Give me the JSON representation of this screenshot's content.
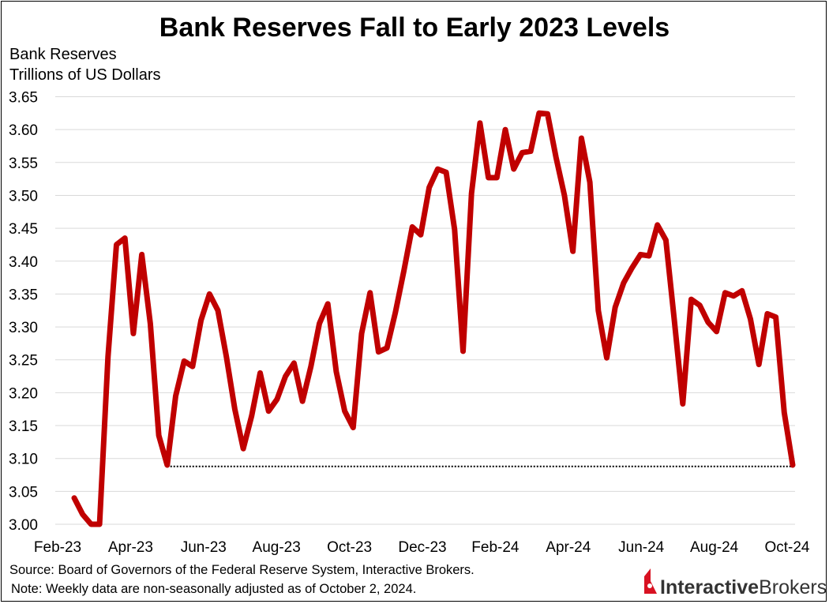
{
  "chart_data": {
    "type": "line",
    "title": "Bank Reserves Fall to Early 2023 Levels",
    "ylabel_lines": [
      "Bank Reserves",
      "Trillions of US Dollars"
    ],
    "ylim": [
      3.0,
      3.65
    ],
    "yticks": [
      "3.00",
      "3.05",
      "3.10",
      "3.15",
      "3.20",
      "3.25",
      "3.30",
      "3.35",
      "3.40",
      "3.45",
      "3.50",
      "3.55",
      "3.60",
      "3.65"
    ],
    "xticks": [
      "Feb-23",
      "Apr-23",
      "Jun-23",
      "Aug-23",
      "Oct-23",
      "Dec-23",
      "Feb-24",
      "Apr-24",
      "Jun-24",
      "Aug-24",
      "Oct-24"
    ],
    "grid": true,
    "series": [
      {
        "color": "#c00000",
        "values": [
          3.04,
          3.015,
          3.0,
          3.0,
          3.255,
          3.425,
          3.435,
          3.29,
          3.41,
          3.305,
          3.135,
          3.09,
          3.195,
          3.248,
          3.24,
          3.31,
          3.35,
          3.325,
          3.255,
          3.175,
          3.115,
          3.165,
          3.23,
          3.172,
          3.19,
          3.225,
          3.245,
          3.187,
          3.24,
          3.305,
          3.335,
          3.232,
          3.172,
          3.147,
          3.29,
          3.352,
          3.262,
          3.268,
          3.322,
          3.385,
          3.452,
          3.44,
          3.512,
          3.54,
          3.535,
          3.448,
          3.263,
          3.503,
          3.61,
          3.527,
          3.527,
          3.6,
          3.54,
          3.565,
          3.567,
          3.625,
          3.624,
          3.558,
          3.5,
          3.415,
          3.587,
          3.52,
          3.325,
          3.253,
          3.33,
          3.367,
          3.39,
          3.41,
          3.408,
          3.455,
          3.432,
          3.31,
          3.183,
          3.342,
          3.333,
          3.307,
          3.293,
          3.352,
          3.347,
          3.355,
          3.312,
          3.243,
          3.32,
          3.315,
          3.17,
          3.09
        ]
      }
    ],
    "reference_line": {
      "value": 3.088,
      "style": "dotted"
    }
  },
  "footer": {
    "source": "Source: Board of Governors of the Federal Reserve System, Interactive Brokers.",
    "note": "Note: Weekly data are non-seasonally adjusted as of October 2, 2024."
  },
  "logo": {
    "text_bold": "Interactive",
    "text_light": "Brokers",
    "color": "#d81222"
  }
}
